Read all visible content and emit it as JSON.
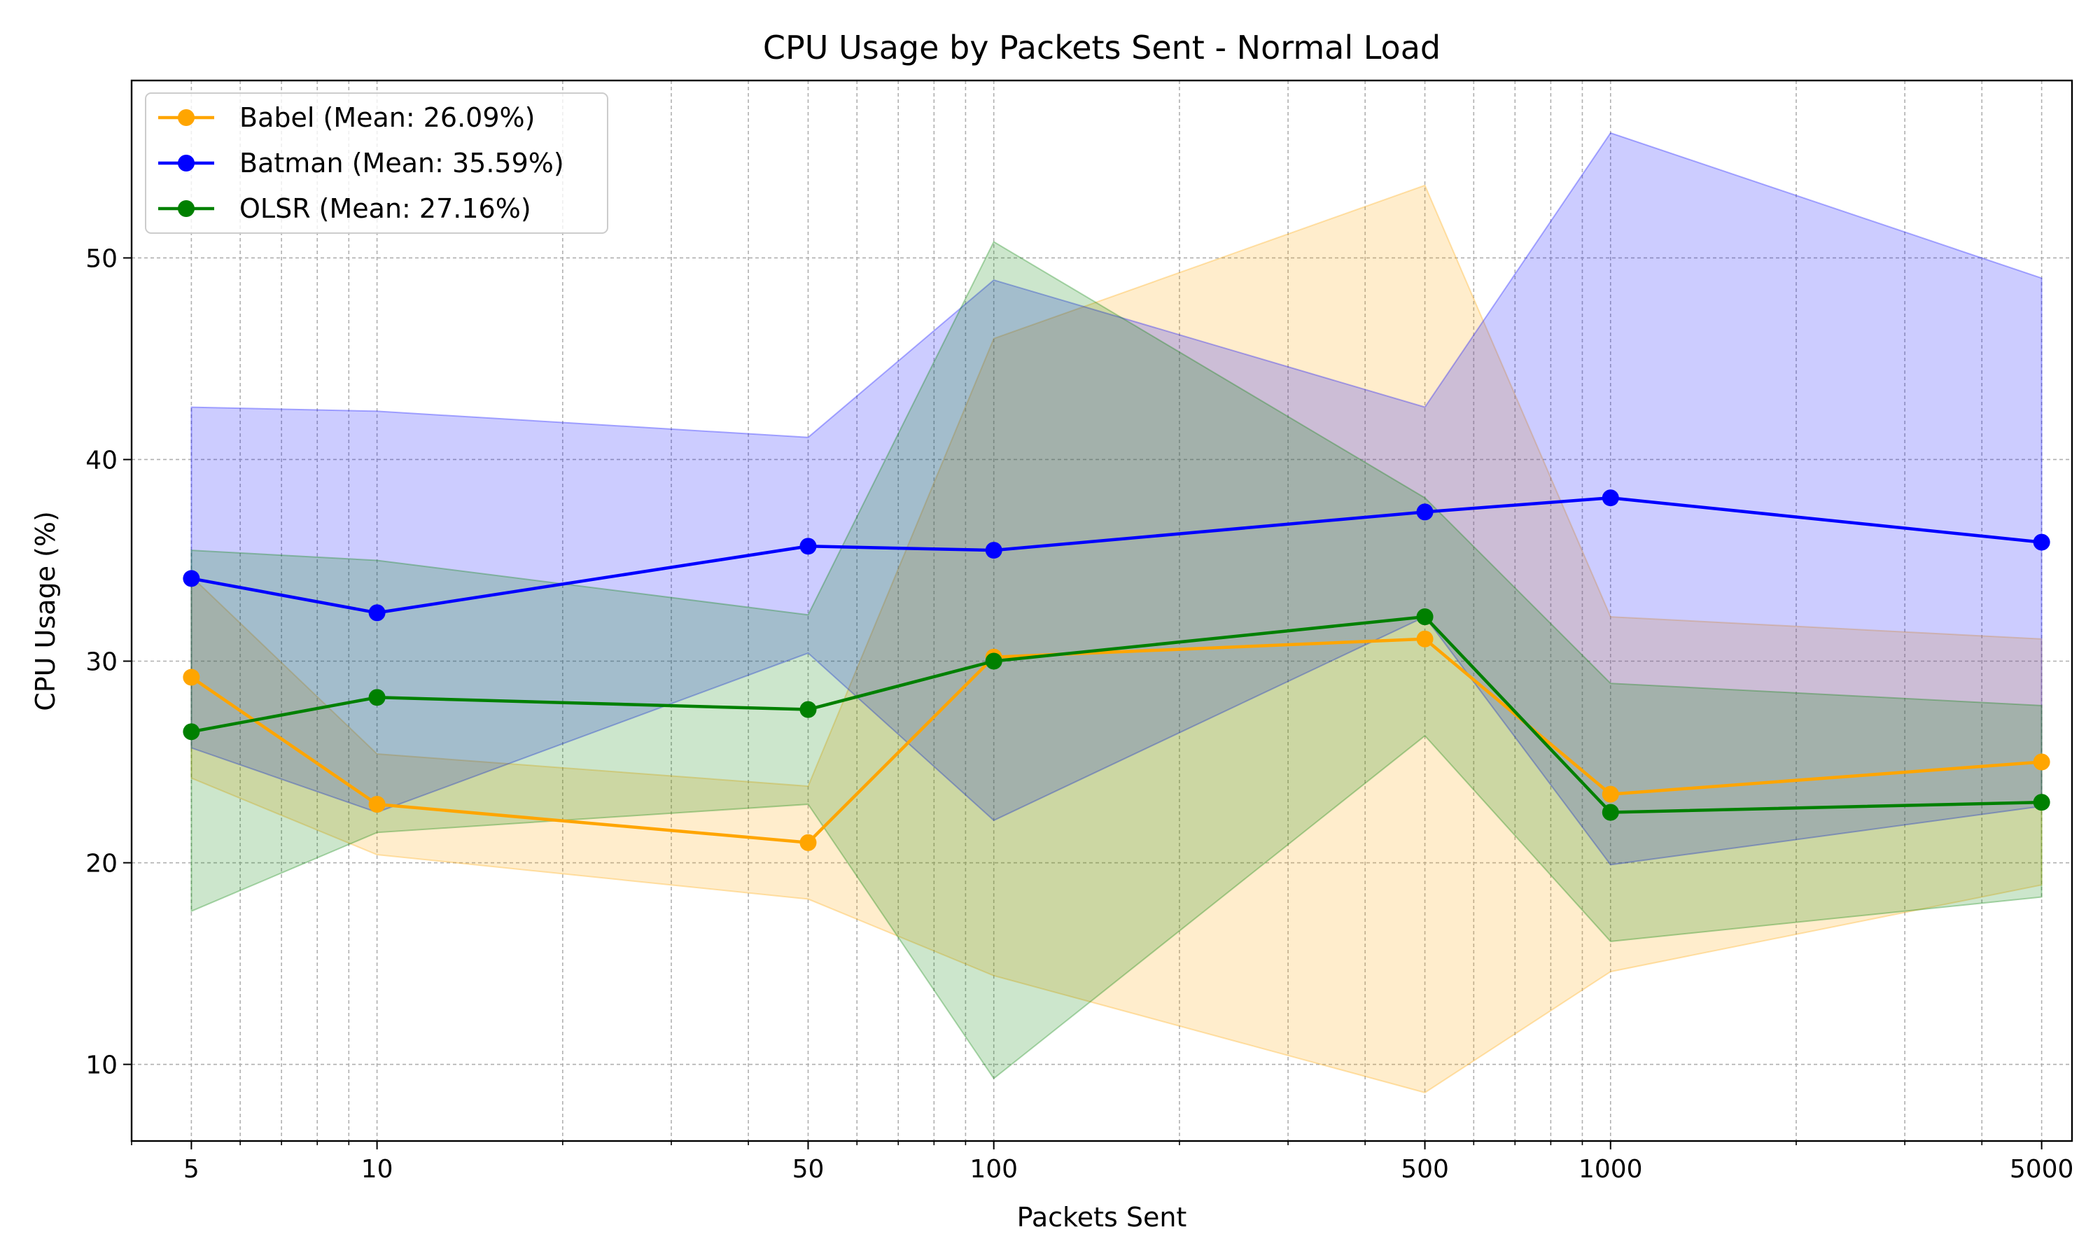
{
  "chart_data": {
    "type": "line",
    "title": "CPU Usage by Packets Sent - Normal Load",
    "xlabel": "Packets Sent",
    "ylabel": "CPU Usage (%)",
    "xscale": "log",
    "xlim": [
      4,
      5600
    ],
    "ylim": [
      6.2,
      58.8
    ],
    "x": [
      5,
      10,
      50,
      100,
      500,
      1000,
      5000
    ],
    "xtick_labels": [
      "5",
      "10",
      "50",
      "100",
      "500",
      "1000",
      "5000"
    ],
    "yticks": [
      10,
      20,
      30,
      40,
      50
    ],
    "grid": true,
    "legend_position": "top-left",
    "series": [
      {
        "name": "Babel (Mean: 26.09%)",
        "color": "#ffa500",
        "values": [
          29.2,
          22.9,
          21.0,
          30.2,
          31.1,
          23.4,
          25.0
        ],
        "band_upper": [
          34.2,
          25.4,
          23.8,
          46.0,
          53.6,
          32.2,
          31.1
        ],
        "band_lower": [
          24.2,
          20.4,
          18.2,
          14.4,
          8.6,
          14.6,
          18.9
        ]
      },
      {
        "name": "Batman (Mean: 35.59%)",
        "color": "#0000ff",
        "values": [
          34.1,
          32.4,
          35.7,
          35.5,
          37.4,
          38.1,
          35.9
        ],
        "band_upper": [
          42.6,
          42.4,
          41.1,
          48.9,
          42.6,
          56.2,
          49.0
        ],
        "band_lower": [
          25.7,
          22.5,
          30.4,
          22.1,
          32.2,
          19.9,
          22.8
        ]
      },
      {
        "name": "OLSR (Mean: 27.16%)",
        "color": "#008000",
        "values": [
          26.5,
          28.2,
          27.6,
          30.0,
          32.2,
          22.5,
          23.0
        ],
        "band_upper": [
          35.5,
          35.0,
          32.3,
          50.8,
          38.1,
          28.9,
          27.8
        ],
        "band_lower": [
          17.6,
          21.5,
          22.9,
          9.3,
          26.3,
          16.1,
          18.3
        ]
      }
    ]
  }
}
